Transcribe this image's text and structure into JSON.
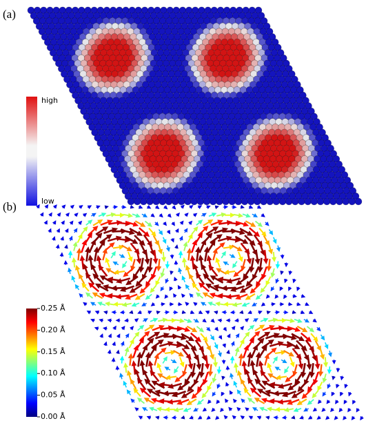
{
  "panels": [
    {
      "label": "(a)",
      "colorbar": {
        "high": "high",
        "low": "low"
      }
    },
    {
      "label": "(b)",
      "colorbar": {
        "lim": [
          0,
          0.25
        ],
        "ticks": [
          {
            "value": 0,
            "label": "0.00 Å"
          },
          {
            "value": 0.05,
            "label": "0.05 Å"
          },
          {
            "value": 0.1,
            "label": "0.10 Å"
          },
          {
            "value": 0.15,
            "label": "0.15 Å"
          },
          {
            "value": 0.2,
            "label": "0.20 Å"
          },
          {
            "value": 0.25,
            "label": "0.25 Å"
          }
        ]
      }
    }
  ]
}
